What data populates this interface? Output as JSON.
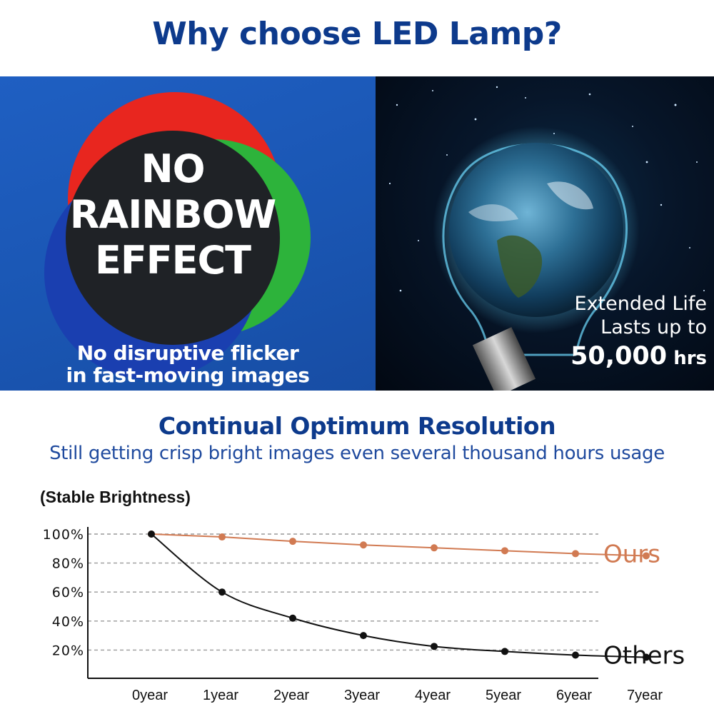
{
  "header": {
    "title": "Why choose LED Lamp?"
  },
  "left_panel": {
    "big_text": [
      "NO",
      "RAINBOW",
      "EFFECT"
    ],
    "caption_line1": "No disruptive flicker",
    "caption_line2": "in fast-moving images",
    "colors": {
      "red": "#e8261f",
      "green": "#2db33b",
      "blue": "#1a3fb0",
      "background": "#1a56b3"
    }
  },
  "right_panel": {
    "line1": "Extended Life",
    "line2": "Lasts up to",
    "hours_value": "50,000",
    "hours_unit": " hrs"
  },
  "section": {
    "title": "Continual Optimum Resolution",
    "subtitle": "Still getting crisp bright images even several thousand hours usage"
  },
  "chart_data": {
    "type": "line",
    "title": "(Stable Brightness)",
    "categories": [
      "0year",
      "1year",
      "2year",
      "3year",
      "4year",
      "5year",
      "6year",
      "7year"
    ],
    "y_tick_labels": [
      "100%",
      "80%",
      "60%",
      "40%",
      "20%"
    ],
    "y_ticks": [
      100,
      80,
      60,
      40,
      20
    ],
    "ylim": [
      0,
      100
    ],
    "grid": true,
    "series": [
      {
        "name": "Ours",
        "color": "#d17a52",
        "values": [
          100,
          98,
          95,
          92.5,
          90.5,
          88.5,
          86.5,
          85
        ]
      },
      {
        "name": "Others",
        "color": "#111111",
        "values": [
          100,
          60,
          42,
          30,
          22.5,
          19,
          16.5,
          15
        ]
      }
    ]
  }
}
